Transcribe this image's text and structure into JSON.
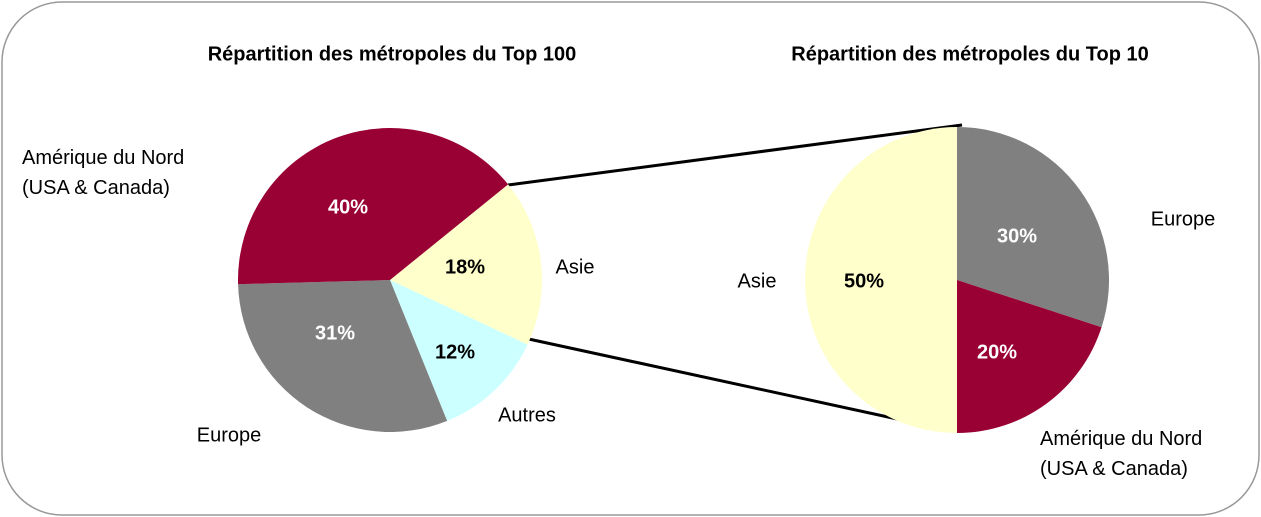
{
  "chart_data": [
    {
      "type": "pie",
      "title": "Répartition des métropoles du Top 100",
      "categories": [
        "Asie",
        "Autres",
        "Europe",
        "Amérique du Nord\n(USA & Canada)"
      ],
      "values": [
        18,
        12,
        31,
        40
      ],
      "value_labels": [
        "18%",
        "12%",
        "31%",
        "40%"
      ],
      "colors": [
        "#ffffcc",
        "#ccffff",
        "#808080",
        "#990033"
      ]
    },
    {
      "type": "pie",
      "title": "Répartition des métropoles du Top 10",
      "categories": [
        "Europe",
        "Amérique du  Nord\n(USA & Canada)",
        "Asie"
      ],
      "values": [
        30,
        20,
        50
      ],
      "value_labels": [
        "30%",
        "20%",
        "50%"
      ],
      "colors": [
        "#808080",
        "#990033",
        "#ffffcc"
      ]
    }
  ]
}
